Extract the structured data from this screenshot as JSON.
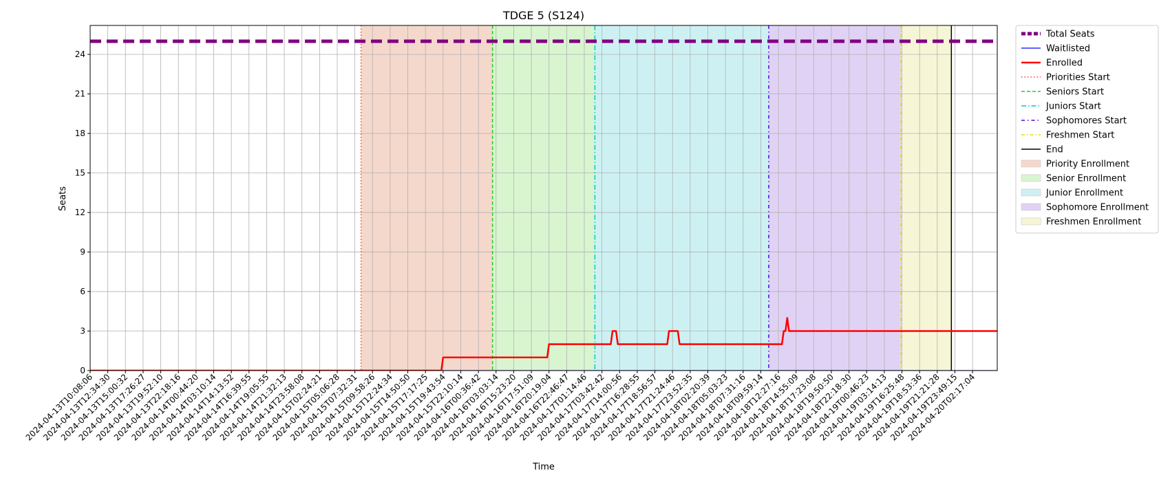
{
  "chart_data": {
    "type": "line",
    "title": "TDGE 5 (S124)",
    "xlabel": "Time",
    "ylabel": "Seats",
    "ylim": [
      0,
      26.2
    ],
    "yticks": [
      0,
      3,
      6,
      9,
      12,
      15,
      18,
      21,
      24
    ],
    "grid": true,
    "legend_position": "outside-right",
    "x_range_index": [
      0,
      51.4
    ],
    "x_tick_labels": [
      "2024-04-13T10:08:06",
      "2024-04-13T12:34:30",
      "2024-04-13T15:00:32",
      "2024-04-13T17:26:27",
      "2024-04-13T19:52:10",
      "2024-04-13T22:18:16",
      "2024-04-14T00:44:20",
      "2024-04-14T03:10:14",
      "2024-04-14T14:13:52",
      "2024-04-14T16:39:55",
      "2024-04-14T19:05:55",
      "2024-04-14T21:32:13",
      "2024-04-14T23:58:08",
      "2024-04-15T02:24:21",
      "2024-04-15T05:06:28",
      "2024-04-15T07:32:31",
      "2024-04-15T09:58:26",
      "2024-04-15T12:24:34",
      "2024-04-15T14:50:50",
      "2024-04-15T17:17:25",
      "2024-04-15T19:43:54",
      "2024-04-15T22:10:14",
      "2024-04-16T00:36:42",
      "2024-04-16T03:03:14",
      "2024-04-16T15:23:20",
      "2024-04-16T17:51:09",
      "2024-04-16T20:19:04",
      "2024-04-16T22:46:47",
      "2024-04-17T01:14:46",
      "2024-04-17T03:42:42",
      "2024-04-17T14:00:56",
      "2024-04-17T16:28:55",
      "2024-04-17T18:56:57",
      "2024-04-17T21:24:46",
      "2024-04-17T23:52:35",
      "2024-04-18T02:20:39",
      "2024-04-18T05:03:23",
      "2024-04-18T07:31:16",
      "2024-04-18T09:59:14",
      "2024-04-18T12:27:16",
      "2024-04-18T14:55:09",
      "2024-04-18T17:23:08",
      "2024-04-18T19:50:50",
      "2024-04-18T22:18:30",
      "2024-04-19T00:46:23",
      "2024-04-19T03:14:13",
      "2024-04-19T16:25:48",
      "2024-04-19T18:53:36",
      "2024-04-19T21:21:28",
      "2024-04-19T23:49:15",
      "2024-04-20T02:17:04"
    ],
    "series": [
      {
        "name": "Total Seats",
        "color": "#800080",
        "style": "dashed-thick",
        "points": [
          [
            0,
            25
          ],
          [
            51.4,
            25
          ]
        ]
      },
      {
        "name": "Waitlisted",
        "color": "#0000ff",
        "style": "solid-thin",
        "points": [
          [
            0,
            0
          ],
          [
            51.4,
            0
          ]
        ]
      },
      {
        "name": "Enrolled",
        "color": "#ff0000",
        "style": "solid-thick",
        "points": [
          [
            0,
            0
          ],
          [
            19.9,
            0
          ],
          [
            20,
            1
          ],
          [
            25.9,
            1
          ],
          [
            26,
            2
          ],
          [
            29.5,
            2
          ],
          [
            29.6,
            3
          ],
          [
            29.8,
            3
          ],
          [
            29.9,
            2
          ],
          [
            32.7,
            2
          ],
          [
            32.8,
            3
          ],
          [
            33.3,
            3
          ],
          [
            33.4,
            2
          ],
          [
            39.2,
            2
          ],
          [
            39.3,
            3
          ],
          [
            39.4,
            3
          ],
          [
            39.5,
            4
          ],
          [
            39.6,
            3
          ],
          [
            51.4,
            3
          ]
        ]
      }
    ],
    "markers": [
      {
        "name": "Priorities Start",
        "x": 15.35,
        "color": "#ff3b1f",
        "dash": "1.5,3"
      },
      {
        "name": "Seniors Start",
        "x": 22.8,
        "color": "#22cc22",
        "dash": "5,3"
      },
      {
        "name": "Juniors Start",
        "x": 28.6,
        "color": "#00c8d2",
        "dash": "7,3,1.5,3"
      },
      {
        "name": "Sophomores Start",
        "x": 38.45,
        "color": "#5500ee",
        "dash": "5,4,1.5,4"
      },
      {
        "name": "Freshmen Start",
        "x": 45.95,
        "color": "#e8e000",
        "dash": "5,3,1.5,3"
      },
      {
        "name": "End",
        "x": 48.8,
        "color": "#000000",
        "dash": ""
      }
    ],
    "bands": [
      {
        "name": "Priority Enrollment",
        "from": 15.35,
        "to": 22.8,
        "color": "#f5d8cc"
      },
      {
        "name": "Senior Enrollment",
        "from": 22.8,
        "to": 28.6,
        "color": "#d8f5d0"
      },
      {
        "name": "Junior Enrollment",
        "from": 28.6,
        "to": 38.45,
        "color": "#cdf1f3"
      },
      {
        "name": "Sophomore Enrollment",
        "from": 38.45,
        "to": 45.95,
        "color": "#e0d2f5"
      },
      {
        "name": "Freshmen Enrollment",
        "from": 45.95,
        "to": 48.8,
        "color": "#f6f6d7"
      }
    ],
    "legend": [
      {
        "label": "Total Seats",
        "kind": "line",
        "color": "#800080",
        "dash": "6,3",
        "width": 5
      },
      {
        "label": "Waitlisted",
        "kind": "line",
        "color": "#0000ff",
        "dash": "",
        "width": 1.2
      },
      {
        "label": "Enrolled",
        "kind": "line",
        "color": "#ff0000",
        "dash": "",
        "width": 2.5
      },
      {
        "label": "Priorities Start",
        "kind": "line",
        "color": "#ff3b1f",
        "dash": "1.5,3",
        "width": 1.5
      },
      {
        "label": "Seniors Start",
        "kind": "line",
        "color": "#22cc22",
        "dash": "5,3",
        "width": 1.5
      },
      {
        "label": "Juniors Start",
        "kind": "line",
        "color": "#00c8d2",
        "dash": "7,3,1.5,3",
        "width": 1.5
      },
      {
        "label": "Sophomores Start",
        "kind": "line",
        "color": "#5500ee",
        "dash": "5,4,1.5,4",
        "width": 1.5
      },
      {
        "label": "Freshmen Start",
        "kind": "line",
        "color": "#e8e000",
        "dash": "5,3,1.5,3",
        "width": 1.5
      },
      {
        "label": "End",
        "kind": "line",
        "color": "#000000",
        "dash": "",
        "width": 1.5
      },
      {
        "label": "Priority Enrollment",
        "kind": "patch",
        "color": "#f5d8cc"
      },
      {
        "label": "Senior Enrollment",
        "kind": "patch",
        "color": "#d8f5d0"
      },
      {
        "label": "Junior Enrollment",
        "kind": "patch",
        "color": "#cdf1f3"
      },
      {
        "label": "Sophomore Enrollment",
        "kind": "patch",
        "color": "#e0d2f5"
      },
      {
        "label": "Freshmen Enrollment",
        "kind": "patch",
        "color": "#f6f6d7"
      }
    ]
  }
}
